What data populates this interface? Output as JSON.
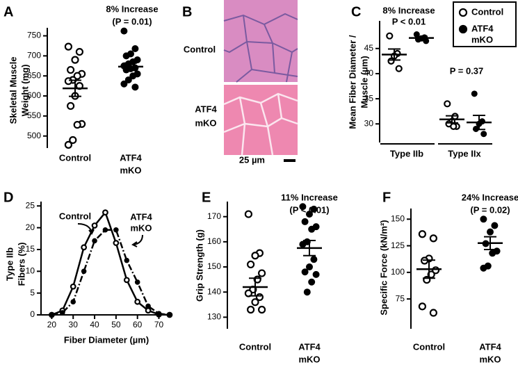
{
  "chart_data": [
    {
      "type": "dot",
      "panel_label": "A",
      "ylabel": [
        "Skeletal Muscle",
        "Weight (mg)"
      ],
      "annotation": [
        "8% Increase",
        "(P = 0.01)"
      ],
      "ylim": [
        470,
        770
      ],
      "yticks": [
        500,
        550,
        600,
        650,
        700,
        750
      ],
      "groups": [
        {
          "label": [
            "Control"
          ],
          "marker": "open",
          "values": [
            723,
            710,
            690,
            665,
            655,
            650,
            640,
            637,
            625,
            600,
            575,
            530,
            528,
            490,
            478
          ],
          "mean": 619,
          "sem": 20
        },
        {
          "label": [
            "ATF4",
            "mKO"
          ],
          "marker": "filled",
          "values": [
            762,
            718,
            705,
            700,
            690,
            685,
            680,
            675,
            670,
            668,
            665,
            655,
            650,
            640,
            630,
            622
          ],
          "mean": 673,
          "sem": 9
        }
      ]
    },
    {
      "type": "image",
      "panel_label": "B",
      "labels": [
        [
          "Control"
        ],
        [
          "ATF4",
          "mKO"
        ]
      ],
      "scale_bar": "25 µm"
    },
    {
      "type": "grouped_dot",
      "panel_label": "C",
      "ylabel": [
        "Mean Fiber Diameter /",
        "Muscle (µm)"
      ],
      "ylim": [
        26.3,
        50.5
      ],
      "yticks": [
        30,
        35,
        40,
        45
      ],
      "categories": [
        "Type IIb",
        "Type IIx"
      ],
      "annotations": [
        [
          "8% Increase",
          "P < 0.01"
        ],
        [
          "P = 0.37"
        ]
      ],
      "series": [
        {
          "name": [
            "Control"
          ],
          "marker": "open",
          "values": [
            [
              47.5,
              44,
              43.5,
              42.5,
              41
            ],
            [
              34,
              31.5,
              30.5,
              30,
              29.5,
              29.5
            ]
          ],
          "mean": [
            43.8,
            30.9
          ],
          "sem": [
            1.1,
            0.7
          ]
        },
        {
          "name": [
            "ATF4",
            "mKO"
          ],
          "marker": "filled",
          "values": [
            [
              47.8,
              47.2,
              47,
              46.8,
              46.5
            ],
            [
              36,
              30.5,
              30,
              29,
              28
            ]
          ],
          "mean": [
            47.1,
            30.3
          ],
          "sem": [
            0.3,
            1.4
          ]
        }
      ]
    },
    {
      "type": "line",
      "panel_label": "D",
      "ylabel": [
        "Type IIb",
        "Fibers (%)"
      ],
      "xlabel": "Fiber Diameter (µm)",
      "xlim": [
        15,
        76
      ],
      "ylim": [
        0,
        26
      ],
      "xticks": [
        20,
        30,
        40,
        50,
        60,
        70
      ],
      "yticks": [
        0,
        5,
        10,
        15,
        20,
        25
      ],
      "x": [
        20,
        25,
        30,
        35,
        40,
        45,
        50,
        55,
        60,
        65,
        70,
        75
      ],
      "series": [
        {
          "name": [
            "Control"
          ],
          "marker": "open",
          "dashed": false,
          "values": [
            0,
            1,
            6.5,
            15.5,
            20.5,
            23.5,
            16.5,
            8,
            3,
            1,
            0.1,
            0
          ]
        },
        {
          "name": [
            "ATF4",
            "mKO"
          ],
          "marker": "filled",
          "dashed": true,
          "values": [
            0,
            0.5,
            3,
            10,
            17,
            19.5,
            19.5,
            12.5,
            7.5,
            2,
            0.3,
            0
          ]
        }
      ]
    },
    {
      "type": "dot",
      "panel_label": "E",
      "ylabel": [
        "Grip Strength (g)"
      ],
      "annotation": [
        "11% Increase",
        "(P < 0.01)"
      ],
      "ylim": [
        125.4,
        176
      ],
      "yticks": [
        130,
        140,
        150,
        160,
        170
      ],
      "groups": [
        {
          "label": [
            "Control"
          ],
          "marker": "open",
          "values": [
            171,
            155.5,
            154.5,
            151,
            147.5,
            145,
            141,
            139.5,
            138,
            136,
            133,
            133
          ],
          "mean": 142,
          "sem": 3.5
        },
        {
          "label": [
            "ATF4",
            "mKO"
          ],
          "marker": "filled",
          "values": [
            174,
            173,
            171,
            168,
            166,
            165,
            160,
            159,
            153,
            150,
            148,
            147,
            144,
            140
          ],
          "mean": 157.5,
          "sem": 3
        }
      ]
    },
    {
      "type": "dot",
      "panel_label": "F",
      "ylabel": [
        "Specific Force (kN/m²)"
      ],
      "annotation": [
        "24% Increase",
        "(P = 0.02)"
      ],
      "ylim": [
        47,
        160
      ],
      "yticks": [
        75,
        100,
        125,
        150
      ],
      "groups": [
        {
          "label": [
            "Control"
          ],
          "marker": "open",
          "values": [
            136,
            132,
            113,
            111,
            102,
            98,
            93,
            68,
            62
          ],
          "mean": 103,
          "sem": 8.5
        },
        {
          "label": [
            "ATF4",
            "mKO"
          ],
          "marker": "filled",
          "values": [
            150,
            144,
            138,
            127,
            120,
            118,
            106,
            104
          ],
          "mean": 127.5,
          "sem": 6
        }
      ]
    }
  ]
}
